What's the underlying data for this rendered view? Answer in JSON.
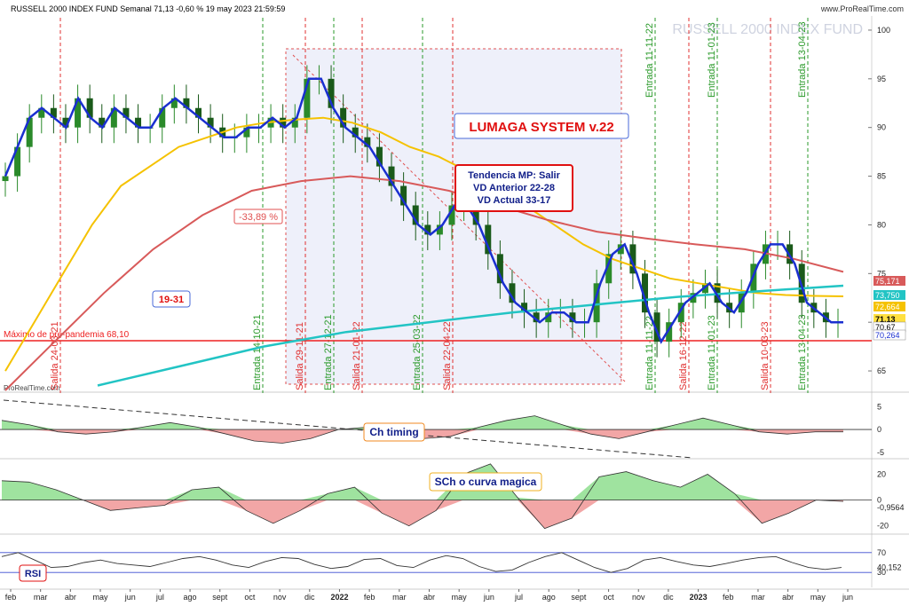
{
  "header": {
    "title": "RUSSELL 2000 INDEX FUND Semanal 71,13 -0,60 % 19 may 2023 21:59:59",
    "brand": "www.ProRealTime.com",
    "watermark": "RUSSELL 2000 INDEX FUND",
    "footer_brand": "ProRealTime.com"
  },
  "annotations": {
    "system_title": "LUMAGA SYSTEM v.22",
    "trend_box": [
      "Tendencia MP: Salir",
      "VD Anterior 22-28",
      "VD Actual 33-17"
    ],
    "drawdown": "-33,89 %",
    "cycle": "19-31",
    "pre_pandemic_max": "Máximo de pre-pandemia 68,10",
    "ch_timing": "Ch timing",
    "sch": "SCh o curva magica",
    "rsi": "RSI"
  },
  "colors": {
    "price_ma_short": "#1a2fd0",
    "ma_yellow": "#f5c200",
    "ma_red": "#d85a5a",
    "ma_cyan": "#22c4c4",
    "candle_up": "#2a8a2a",
    "candle_down": "#1a5a1a",
    "entry_line": "#2a9a2a",
    "exit_line": "#e03030",
    "support": "#ee2020",
    "fill_pos": "#9fe39f",
    "fill_neg": "#f2a6a6"
  },
  "signals": {
    "entries": [
      "Entrada 14-10-21",
      "Entrada 27-12-21",
      "Entrada 25-03-22",
      "Entrada 11-11-22",
      "Entrada 11-01-23",
      "Entrada 13-04-23"
    ],
    "exits": [
      "Salida 24-03-21",
      "Salida 29-11-21",
      "Salida 21-01-22",
      "Salida 22-04-22",
      "Salida 16-12-22",
      "Salida 10-03-23"
    ]
  },
  "price_axis": {
    "ticks": [
      "100",
      "95",
      "90",
      "85",
      "80",
      "75",
      "70",
      "65"
    ],
    "tags": [
      {
        "text": "75,171",
        "kind": "red"
      },
      {
        "text": "73,750",
        "kind": "cyan"
      },
      {
        "text": "72,664",
        "kind": "yellow"
      },
      {
        "text": "71,13",
        "kind": "price"
      },
      {
        "text": "70,67",
        "kind": "plain"
      },
      {
        "text": "70,264",
        "kind": "blue"
      }
    ]
  },
  "ch_axis": {
    "ticks": [
      "5",
      "0",
      "-5"
    ],
    "tag": "0"
  },
  "sch_axis": {
    "ticks": [
      "20",
      "0",
      "-20"
    ],
    "tags": [
      "0",
      "-0,9564"
    ]
  },
  "rsi_axis": {
    "ticks": [
      "70",
      "30"
    ],
    "tag": "40,152"
  },
  "time_axis": {
    "labels": [
      "feb",
      "mar",
      "abr",
      "may",
      "jun",
      "jul",
      "ago",
      "sept",
      "oct",
      "nov",
      "dic",
      "2022",
      "feb",
      "mar",
      "abr",
      "may",
      "jun",
      "jul",
      "ago",
      "sept",
      "oct",
      "nov",
      "dic",
      "2023",
      "feb",
      "mar",
      "abr",
      "may",
      "jun"
    ]
  },
  "chart_data": [
    {
      "type": "line",
      "title": "RUSSELL 2000 INDEX FUND Semanal",
      "ylim": [
        63,
        102
      ],
      "series": [
        {
          "values": [
            85,
            88,
            91,
            92,
            91,
            90,
            93,
            91,
            90,
            92,
            91,
            90,
            90,
            92,
            93,
            92,
            91,
            90,
            89,
            89,
            90,
            90,
            91,
            90,
            91,
            95,
            95,
            92,
            90,
            89,
            88,
            86,
            84,
            82,
            80,
            79,
            80,
            82,
            82,
            80,
            77,
            74,
            72,
            71,
            70,
            71,
            71,
            70,
            70,
            74,
            77,
            78,
            75,
            71,
            68,
            70,
            72,
            73,
            74,
            72,
            71,
            73,
            76,
            78,
            78,
            76,
            72,
            71,
            70,
            70
          ]
        },
        {
          "name": "72,664",
          "values": [
            65,
            70,
            75,
            80,
            84,
            86,
            88,
            89,
            90,
            90.5,
            90.8,
            91,
            90.5,
            89.5,
            88,
            87,
            85.5,
            84,
            82,
            80,
            78,
            76.5,
            75.5,
            74.5,
            74,
            73.5,
            73,
            72.8,
            72.7,
            72.66
          ]
        },
        {
          "name": "75,171",
          "values": [
            63,
            68,
            73,
            77.5,
            81,
            83.5,
            84.5,
            85,
            84.5,
            83.5,
            82,
            80.5,
            79.3,
            78.6,
            78,
            77.5,
            76.5,
            75.17
          ]
        },
        {
          "name": "73,750",
          "values": [
            63.5,
            65.5,
            67.5,
            69,
            70,
            71,
            71.8,
            72.6,
            73.2,
            73.75
          ]
        }
      ]
    },
    {
      "type": "area",
      "title": "Ch timing",
      "ylim": [
        -6,
        7
      ],
      "values": [
        2,
        1,
        -0.5,
        -1,
        -0.5,
        0.5,
        1.5,
        0.5,
        -1,
        -2.5,
        -3,
        -2,
        0,
        0.5,
        -1,
        -2,
        -1.5,
        0.5,
        2,
        3,
        1,
        -1,
        -2,
        -0.5,
        1,
        2.5,
        1,
        -0.5,
        -1,
        -0.5,
        -0.5
      ]
    },
    {
      "type": "area",
      "title": "SCh o curva magica",
      "ylim": [
        -25,
        30
      ],
      "values": [
        15,
        14,
        8,
        0,
        -8,
        -6,
        -4,
        8,
        10,
        -8,
        -18,
        -8,
        5,
        10,
        -10,
        -20,
        -8,
        20,
        28,
        2,
        -22,
        -14,
        18,
        22,
        15,
        10,
        20,
        5,
        -18,
        -10,
        0,
        -1
      ]
    },
    {
      "type": "line",
      "title": "RSI",
      "ylim": [
        0,
        100
      ],
      "values": [
        62,
        70,
        55,
        40,
        42,
        50,
        55,
        48,
        45,
        42,
        50,
        58,
        62,
        55,
        45,
        40,
        52,
        60,
        58,
        46,
        38,
        42,
        56,
        58,
        44,
        40,
        55,
        64,
        58,
        42,
        32,
        35,
        50,
        62,
        70,
        55,
        40,
        30,
        38,
        55,
        60,
        52,
        45,
        42,
        48,
        55,
        60,
        62,
        50,
        40,
        36,
        40
      ]
    }
  ]
}
